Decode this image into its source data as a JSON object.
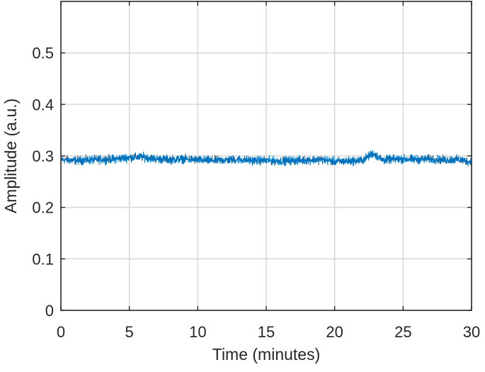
{
  "chart_data": {
    "type": "line",
    "title": "",
    "xlabel": "Time (minutes)",
    "ylabel": "Amplitude (a.u.)",
    "xlim": [
      0,
      30
    ],
    "ylim": [
      0,
      0.6
    ],
    "x_ticks": [
      0,
      5,
      10,
      15,
      20,
      25,
      30
    ],
    "x_tick_labels": [
      "0",
      "5",
      "10",
      "15",
      "20",
      "25",
      "30"
    ],
    "y_ticks": [
      0,
      0.1,
      0.2,
      0.3,
      0.4,
      0.5
    ],
    "y_tick_labels": [
      "0",
      "0.1",
      "0.2",
      "0.3",
      "0.4",
      "0.5"
    ],
    "grid": true,
    "legend": "none",
    "series": [
      {
        "color": "#0072BD",
        "x": [
          0,
          1,
          2,
          3,
          4,
          5,
          6,
          7,
          8,
          9,
          10,
          11,
          12,
          13,
          14,
          15,
          16,
          17,
          18,
          19,
          20,
          21,
          22,
          22.8,
          23.5,
          24,
          25,
          26,
          27,
          28,
          29,
          30
        ],
        "y": [
          0.293,
          0.291,
          0.292,
          0.293,
          0.294,
          0.297,
          0.298,
          0.294,
          0.293,
          0.294,
          0.292,
          0.291,
          0.292,
          0.293,
          0.291,
          0.291,
          0.29,
          0.291,
          0.292,
          0.293,
          0.289,
          0.29,
          0.291,
          0.305,
          0.292,
          0.293,
          0.294,
          0.293,
          0.294,
          0.292,
          0.293,
          0.288
        ],
        "noise_amplitude": 0.012
      }
    ]
  }
}
